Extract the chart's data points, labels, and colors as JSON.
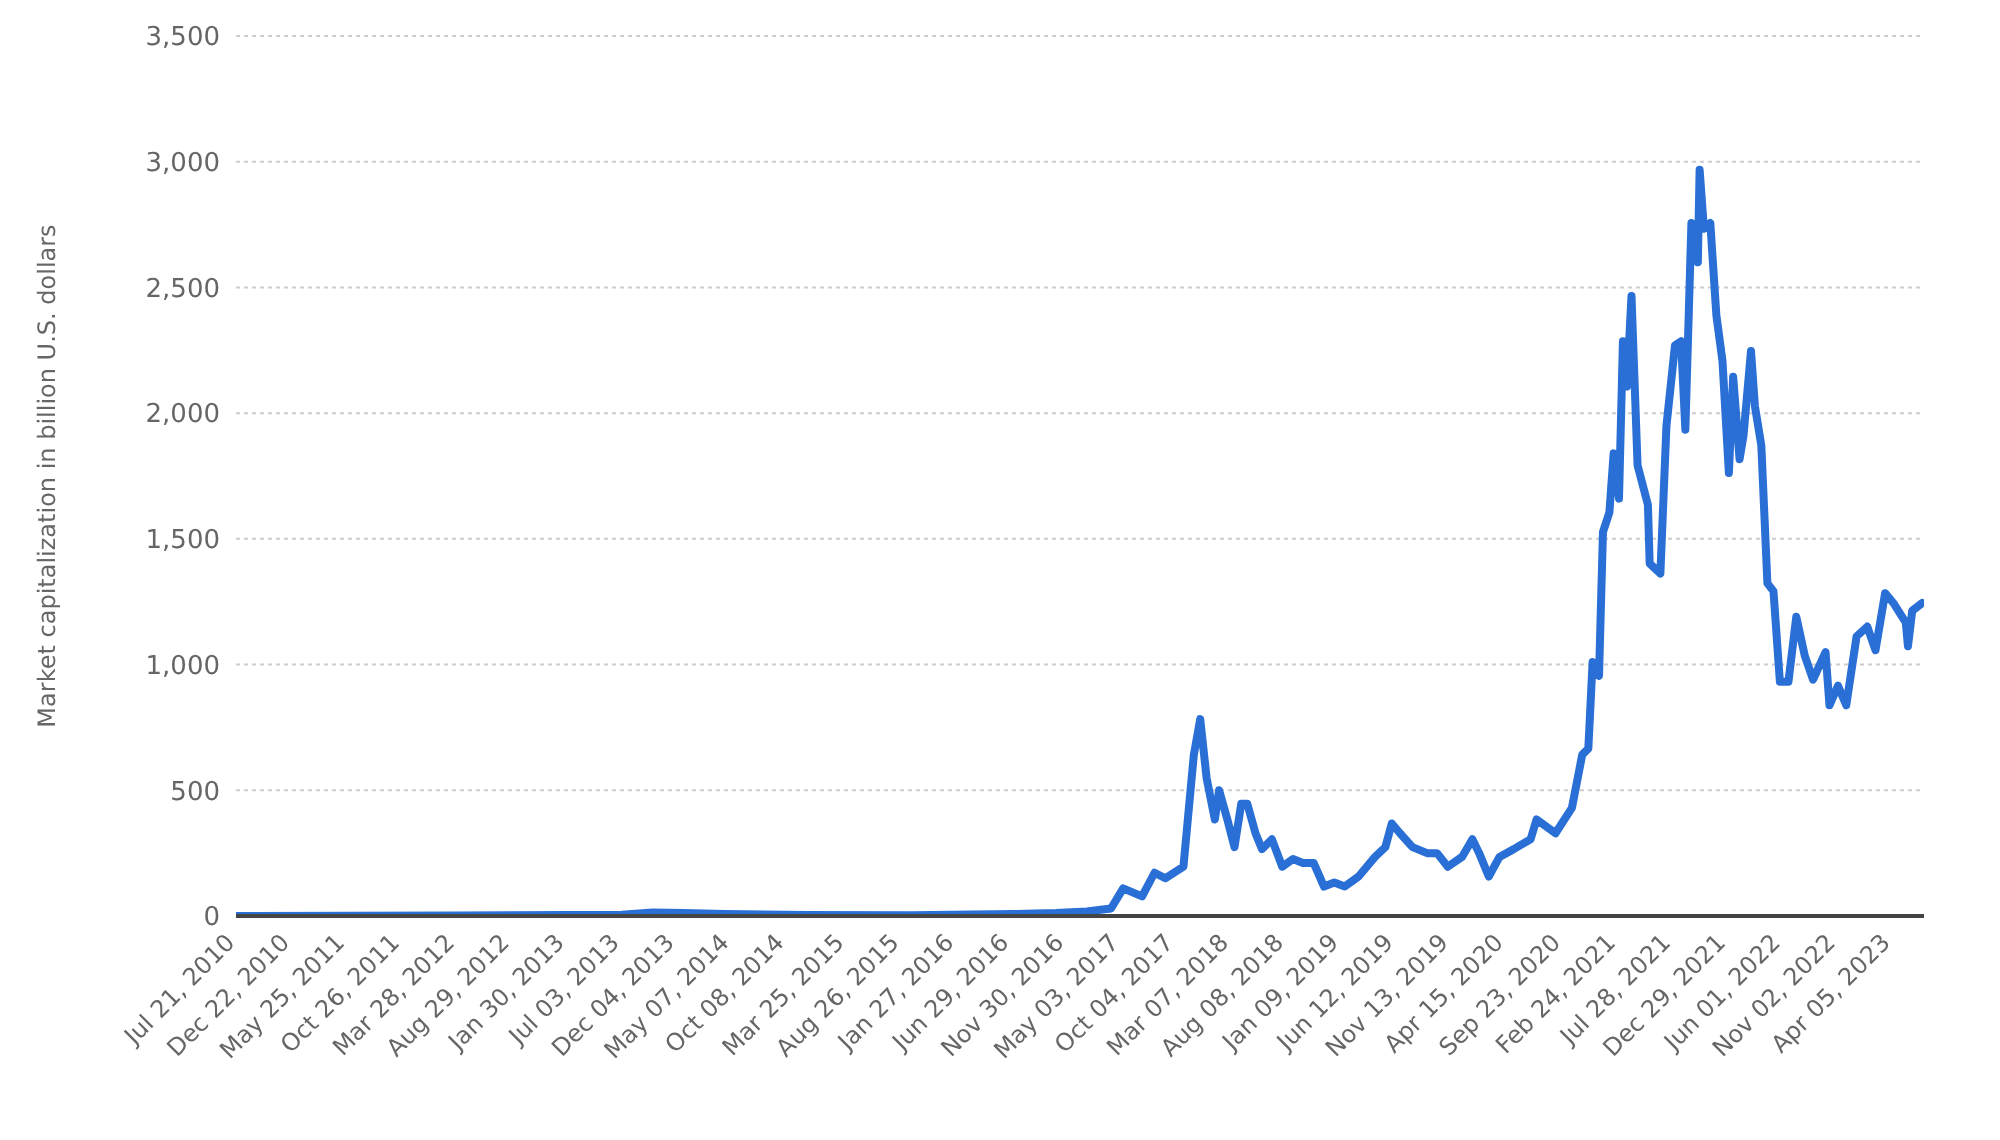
{
  "chart_data": {
    "type": "line",
    "ylabel": "Market capitalization in billion U.S. dollars",
    "xlim": [
      "2010-07-21",
      "2023-07-05"
    ],
    "xticks": [
      {
        "value": "2010-07-21",
        "label": "Jul 21, 2010"
      },
      {
        "value": "2010-12-22",
        "label": "Dec 22, 2010"
      },
      {
        "value": "2011-05-25",
        "label": "May 25, 2011"
      },
      {
        "value": "2011-10-26",
        "label": "Oct 26, 2011"
      },
      {
        "value": "2012-03-28",
        "label": "Mar 28, 2012"
      },
      {
        "value": "2012-08-29",
        "label": "Aug 29, 2012"
      },
      {
        "value": "2013-01-30",
        "label": "Jan 30, 2013"
      },
      {
        "value": "2013-07-03",
        "label": "Jul 03, 2013"
      },
      {
        "value": "2013-12-04",
        "label": "Dec 04, 2013"
      },
      {
        "value": "2014-05-07",
        "label": "May 07, 2014"
      },
      {
        "value": "2014-10-08",
        "label": "Oct 08, 2014"
      },
      {
        "value": "2015-03-25",
        "label": "Mar 25, 2015"
      },
      {
        "value": "2015-08-26",
        "label": "Aug 26, 2015"
      },
      {
        "value": "2016-01-27",
        "label": "Jan 27, 2016"
      },
      {
        "value": "2016-06-29",
        "label": "Jun 29, 2016"
      },
      {
        "value": "2016-11-30",
        "label": "Nov 30, 2016"
      },
      {
        "value": "2017-05-03",
        "label": "May 03, 2017"
      },
      {
        "value": "2017-10-04",
        "label": "Oct 04, 2017"
      },
      {
        "value": "2018-03-07",
        "label": "Mar 07, 2018"
      },
      {
        "value": "2018-08-08",
        "label": "Aug 08, 2018"
      },
      {
        "value": "2019-01-09",
        "label": "Jan 09, 2019"
      },
      {
        "value": "2019-06-12",
        "label": "Jun 12, 2019"
      },
      {
        "value": "2019-11-13",
        "label": "Nov 13, 2019"
      },
      {
        "value": "2020-04-15",
        "label": "Apr 15, 2020"
      },
      {
        "value": "2020-09-23",
        "label": "Sep 23, 2020"
      },
      {
        "value": "2021-02-24",
        "label": "Feb 24, 2021"
      },
      {
        "value": "2021-07-28",
        "label": "Jul 28, 2021"
      },
      {
        "value": "2021-12-29",
        "label": "Dec 29, 2021"
      },
      {
        "value": "2022-06-01",
        "label": "Jun 01, 2022"
      },
      {
        "value": "2022-11-02",
        "label": "Nov 02, 2022"
      },
      {
        "value": "2023-04-05",
        "label": "Apr 05, 2023"
      }
    ],
    "ylim": [
      0,
      3500
    ],
    "yticks": [
      {
        "value": 0,
        "label": "0"
      },
      {
        "value": 500,
        "label": "500"
      },
      {
        "value": 1000,
        "label": "1,000"
      },
      {
        "value": 1500,
        "label": "1,500"
      },
      {
        "value": 2000,
        "label": "2,000"
      },
      {
        "value": 2500,
        "label": "2,500"
      },
      {
        "value": 3000,
        "label": "3,000"
      },
      {
        "value": 3500,
        "label": "3,500"
      }
    ],
    "grid": "y",
    "legend": false,
    "marker": "none",
    "line_style": "solid",
    "x": [
      "2010-07-21",
      "2012-03-29",
      "2013-07-06",
      "2013-10-01",
      "2013-12-27",
      "2014-04-21",
      "2014-12-09",
      "2015-09-25",
      "2016-07-10",
      "2016-11-04",
      "2017-01-30",
      "2017-04-08",
      "2017-05-12",
      "2017-07-04",
      "2017-08-08",
      "2017-09-07",
      "2017-10-28",
      "2017-11-26",
      "2017-12-14",
      "2018-01-01",
      "2018-01-24",
      "2018-02-05",
      "2018-02-28",
      "2018-03-20",
      "2018-04-08",
      "2018-04-25",
      "2018-05-18",
      "2018-06-05",
      "2018-07-03",
      "2018-08-01",
      "2018-08-31",
      "2018-09-28",
      "2018-10-28",
      "2018-11-26",
      "2018-12-25",
      "2019-01-23",
      "2019-03-03",
      "2019-04-18",
      "2019-05-17",
      "2019-06-04",
      "2019-06-27",
      "2019-08-01",
      "2019-09-11",
      "2019-10-09",
      "2019-11-08",
      "2019-12-18",
      "2020-01-16",
      "2020-02-04",
      "2020-03-02",
      "2020-04-01",
      "2020-05-11",
      "2020-06-27",
      "2020-07-14",
      "2020-09-05",
      "2020-10-21",
      "2020-11-19",
      "2020-12-06",
      "2020-12-18",
      "2021-01-05",
      "2021-01-16",
      "2021-02-03",
      "2021-02-15",
      "2021-03-02",
      "2021-03-13",
      "2021-03-24",
      "2021-04-06",
      "2021-04-23",
      "2021-05-22",
      "2021-05-27",
      "2021-06-26",
      "2021-07-13",
      "2021-08-06",
      "2021-08-23",
      "2021-09-04",
      "2021-09-21",
      "2021-10-09",
      "2021-10-14",
      "2021-10-26",
      "2021-11-13",
      "2021-11-30",
      "2021-12-17",
      "2022-01-04",
      "2022-01-16",
      "2022-02-03",
      "2022-02-14",
      "2022-03-07",
      "2022-03-18",
      "2022-04-05",
      "2022-04-22",
      "2022-05-09",
      "2022-05-27",
      "2022-06-20",
      "2022-07-12",
      "2022-08-05",
      "2022-08-28",
      "2022-10-02",
      "2022-10-13",
      "2022-11-06",
      "2022-11-29",
      "2022-12-28",
      "2023-01-27",
      "2023-02-19",
      "2023-03-18",
      "2023-04-10",
      "2023-05-15",
      "2023-05-21",
      "2023-06-02",
      "2023-06-30"
    ],
    "series": [
      {
        "color": "#2a6fd6",
        "values": [
          0,
          2,
          5,
          14,
          12,
          8,
          4,
          3,
          8,
          12,
          18,
          30,
          110,
          78,
          172,
          150,
          196,
          640,
          783,
          548,
          384,
          500,
          384,
          274,
          446,
          446,
          329,
          266,
          305,
          196,
          227,
          211,
          211,
          117,
          133,
          117,
          157,
          235,
          274,
          368,
          329,
          274,
          250,
          250,
          196,
          235,
          305,
          250,
          157,
          235,
          266,
          305,
          384,
          329,
          430,
          642,
          666,
          1010,
          955,
          1527,
          1605,
          1840,
          1660,
          2286,
          2106,
          2466,
          1793,
          1636,
          1402,
          1362,
          1950,
          2270,
          2286,
          1934,
          2756,
          2600,
          2968,
          2733,
          2756,
          2388,
          2208,
          1762,
          2145,
          1817,
          1911,
          2247,
          2028,
          1871,
          1323,
          1292,
          932,
          932,
          1190,
          1034,
          940,
          1049,
          838,
          916,
          838,
          1112,
          1151,
          1057,
          1284,
          1245,
          1167,
          1073,
          1214,
          1245
        ]
      }
    ]
  }
}
